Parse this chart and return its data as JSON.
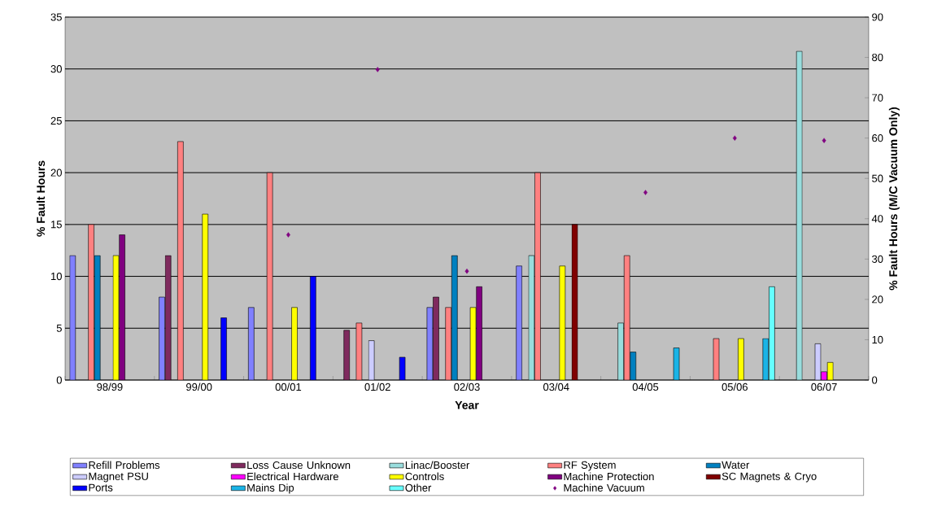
{
  "chart_data": {
    "type": "bar",
    "xlabel": "Year",
    "ylabel": "% Fault Hours",
    "y2label": "% Fault Hours (M/C Vacuum Only)",
    "categories": [
      "98/99",
      "99/00",
      "00/01",
      "01/02",
      "02/03",
      "03/04",
      "04/05",
      "05/06",
      "06/07"
    ],
    "ylim": [
      0,
      35
    ],
    "yticks": [
      0,
      5,
      10,
      15,
      20,
      25,
      30,
      35
    ],
    "y2lim": [
      0,
      90
    ],
    "y2ticks": [
      0,
      10,
      20,
      30,
      40,
      50,
      60,
      70,
      80,
      90
    ],
    "grid": "y",
    "legend": "bottom",
    "series": [
      {
        "name": "Refill Problems",
        "color": "#8080ff",
        "values": [
          12,
          8,
          7,
          null,
          7,
          11,
          null,
          null,
          null
        ]
      },
      {
        "name": "Loss Cause Unknown",
        "color": "#7f2a5e",
        "values": [
          null,
          12,
          null,
          4.8,
          8,
          null,
          null,
          null,
          null
        ]
      },
      {
        "name": "Linac/Booster",
        "color": "#99dddd",
        "values": [
          null,
          null,
          null,
          null,
          null,
          12,
          5.5,
          null,
          31.7
        ]
      },
      {
        "name": "RF System",
        "color": "#ff8080",
        "values": [
          15,
          23,
          20,
          5.5,
          7,
          20,
          12,
          4,
          null
        ]
      },
      {
        "name": "Water",
        "color": "#0080c0",
        "values": [
          12,
          null,
          null,
          null,
          12,
          null,
          2.7,
          null,
          null
        ]
      },
      {
        "name": "Magnet PSU",
        "color": "#ccccff",
        "values": [
          null,
          null,
          null,
          3.8,
          null,
          null,
          null,
          null,
          3.5
        ]
      },
      {
        "name": "Electrical Hardware",
        "color": "#ff00ff",
        "values": [
          null,
          null,
          null,
          null,
          null,
          null,
          null,
          null,
          0.8
        ]
      },
      {
        "name": "Controls",
        "color": "#ffff00",
        "values": [
          12,
          16,
          7,
          null,
          7,
          11,
          null,
          4,
          1.7
        ]
      },
      {
        "name": "Machine Protection",
        "color": "#800080",
        "values": [
          14,
          null,
          null,
          null,
          9,
          null,
          null,
          null,
          null
        ]
      },
      {
        "name": "SC Magnets & Cryo",
        "color": "#800000",
        "values": [
          null,
          null,
          null,
          null,
          null,
          15,
          null,
          null,
          null
        ]
      },
      {
        "name": "Ports",
        "color": "#0000ff",
        "values": [
          null,
          6,
          10,
          2.2,
          null,
          null,
          null,
          null,
          null
        ]
      },
      {
        "name": "Mains Dip",
        "color": "#1ab4e6",
        "values": [
          null,
          null,
          null,
          null,
          null,
          null,
          3.1,
          4,
          null
        ]
      },
      {
        "name": "Other",
        "color": "#66ffff",
        "values": [
          null,
          null,
          null,
          null,
          null,
          null,
          null,
          9,
          null
        ]
      },
      {
        "name": "Machine Vacuum",
        "color": "#800080",
        "type": "scatter",
        "axis": "y2",
        "marker": "diamond",
        "values": [
          null,
          null,
          36,
          77,
          27,
          null,
          46.5,
          60,
          59.4
        ]
      }
    ]
  }
}
